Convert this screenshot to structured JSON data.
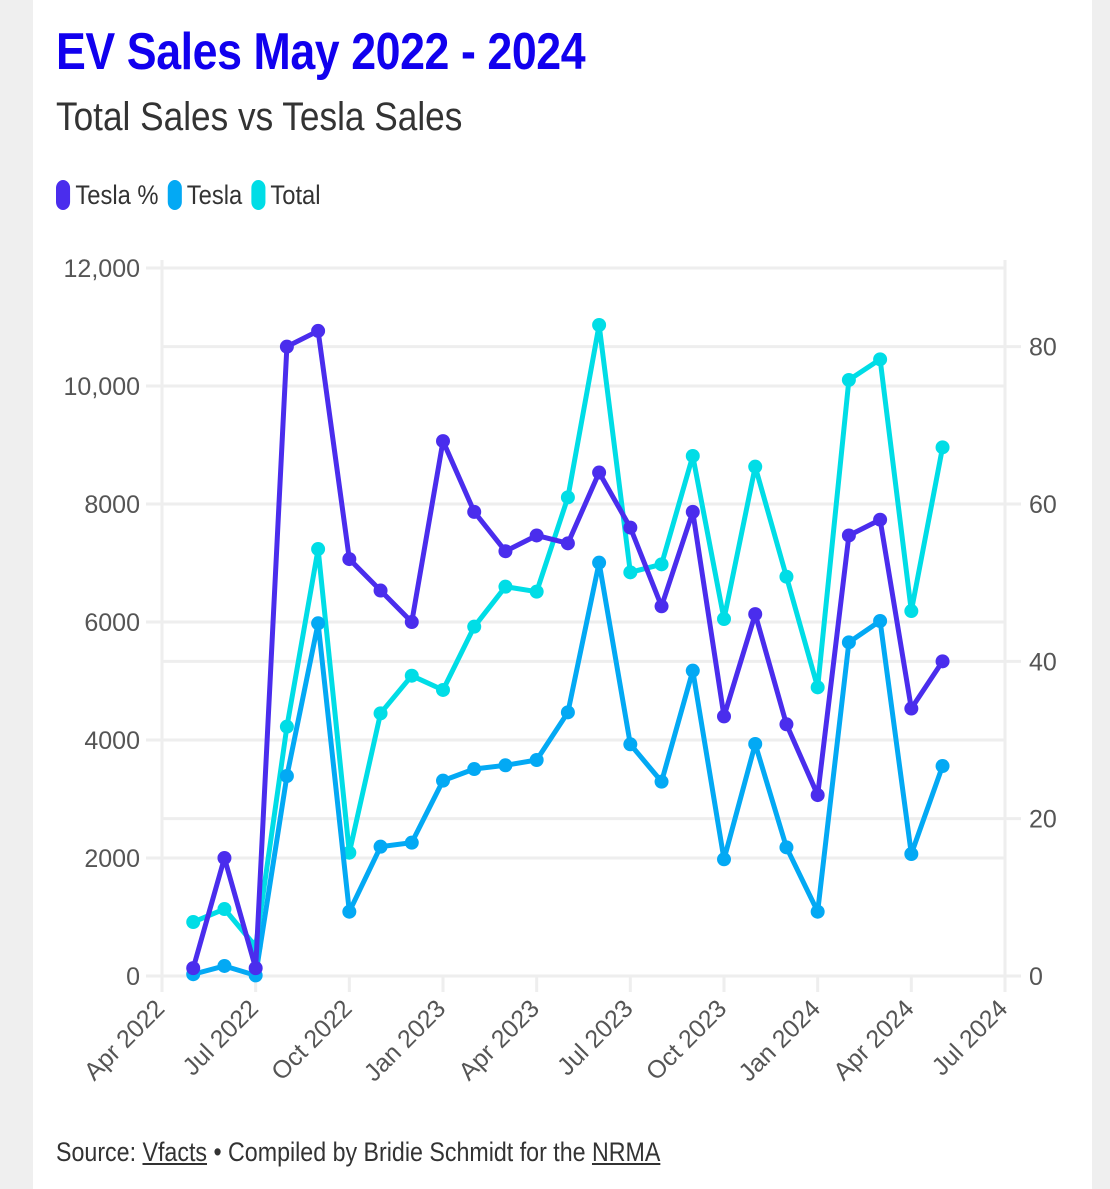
{
  "header": {
    "title": "EV Sales May 2022 - 2024",
    "subtitle": "Total Sales vs Tesla Sales"
  },
  "legend": [
    {
      "label": "Tesla %",
      "color": "#4a2ded"
    },
    {
      "label": "Tesla",
      "color": "#03a9f4"
    },
    {
      "label": "Total",
      "color": "#00dde6"
    }
  ],
  "footer": {
    "source_prefix": "Source: ",
    "source_link": "Vfacts",
    "separator": " • Compiled by Bridie Schmidt for the ",
    "org_link": "NRMA"
  },
  "chart_data": {
    "type": "line",
    "title": "EV Sales May 2022 - 2024",
    "subtitle": "Total Sales vs Tesla Sales",
    "x": [
      "2022-05",
      "2022-06",
      "2022-07",
      "2022-08",
      "2022-09",
      "2022-10",
      "2022-11",
      "2022-12",
      "2023-01",
      "2023-02",
      "2023-03",
      "2023-04",
      "2023-05",
      "2023-06",
      "2023-07",
      "2023-08",
      "2023-09",
      "2023-10",
      "2023-11",
      "2023-12",
      "2024-01",
      "2024-02",
      "2024-03",
      "2024-04",
      "2024-05"
    ],
    "x_range": [
      "2022-04",
      "2024-07"
    ],
    "x_ticks": [
      "Apr 2022",
      "Jul 2022",
      "Oct 2022",
      "Jan 2023",
      "Apr 2023",
      "Jul 2023",
      "Oct 2023",
      "Jan 2024",
      "Apr 2024",
      "Jul 2024"
    ],
    "y_left": {
      "label": "",
      "range": [
        0,
        12000
      ],
      "ticks": [
        "0",
        "2000",
        "4000",
        "6000",
        "8000",
        "10,000",
        "12,000"
      ],
      "tick_values": [
        0,
        2000,
        4000,
        6000,
        8000,
        10000,
        12000
      ]
    },
    "y_right": {
      "label": "",
      "range": [
        0,
        90
      ],
      "ticks": [
        "0",
        "20",
        "40",
        "60",
        "80"
      ],
      "tick_values": [
        0,
        20,
        40,
        60,
        80
      ]
    },
    "grid": true,
    "legend_position": "top-left",
    "series": [
      {
        "name": "Tesla %",
        "axis": "right",
        "color": "#4a2ded",
        "values": [
          1,
          15,
          1,
          80,
          82,
          53,
          49,
          45,
          68,
          59,
          54,
          56,
          55,
          64,
          57,
          47,
          59,
          33,
          46,
          32,
          23,
          56,
          58,
          34,
          40
        ]
      },
      {
        "name": "Tesla",
        "axis": "left",
        "color": "#03a9f4",
        "values": [
          30,
          170,
          10,
          3390,
          5978,
          1090,
          2192,
          2260,
          3311,
          3508,
          3571,
          3661,
          4469,
          7006,
          3927,
          3294,
          5175,
          1978,
          3932,
          2181,
          1090,
          5655,
          6017,
          2068,
          3559
        ]
      },
      {
        "name": "Total",
        "axis": "left",
        "color": "#00dde6",
        "values": [
          915,
          1135,
          500,
          4226,
          7237,
          2090,
          4452,
          5090,
          4848,
          5921,
          6599,
          6514,
          8113,
          11034,
          6842,
          6977,
          8814,
          6051,
          8633,
          6768,
          4893,
          10102,
          10452,
          6186,
          8960
        ]
      }
    ]
  }
}
